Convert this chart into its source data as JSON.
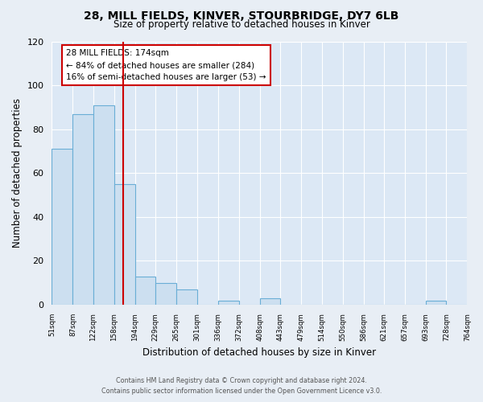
{
  "title": "28, MILL FIELDS, KINVER, STOURBRIDGE, DY7 6LB",
  "subtitle": "Size of property relative to detached houses in Kinver",
  "xlabel": "Distribution of detached houses by size in Kinver",
  "ylabel": "Number of detached properties",
  "bin_edges": [
    51,
    87,
    122,
    158,
    194,
    229,
    265,
    301,
    336,
    372,
    408,
    443,
    479,
    514,
    550,
    586,
    621,
    657,
    693,
    728,
    764
  ],
  "counts": [
    71,
    87,
    91,
    55,
    13,
    10,
    7,
    0,
    2,
    0,
    3,
    0,
    0,
    0,
    0,
    0,
    0,
    0,
    2,
    0
  ],
  "bar_color": "#ccdff0",
  "bar_edge_color": "#6aaed6",
  "vline_x": 174,
  "vline_color": "#cc0000",
  "annotation_text": "28 MILL FIELDS: 174sqm\n← 84% of detached houses are smaller (284)\n16% of semi-detached houses are larger (53) →",
  "annotation_box_color": "white",
  "annotation_box_edge": "#cc0000",
  "ylim": [
    0,
    120
  ],
  "yticks": [
    0,
    20,
    40,
    60,
    80,
    100,
    120
  ],
  "tick_labels": [
    "51sqm",
    "87sqm",
    "122sqm",
    "158sqm",
    "194sqm",
    "229sqm",
    "265sqm",
    "301sqm",
    "336sqm",
    "372sqm",
    "408sqm",
    "443sqm",
    "479sqm",
    "514sqm",
    "550sqm",
    "586sqm",
    "621sqm",
    "657sqm",
    "693sqm",
    "728sqm",
    "764sqm"
  ],
  "footer1": "Contains HM Land Registry data © Crown copyright and database right 2024.",
  "footer2": "Contains public sector information licensed under the Open Government Licence v3.0.",
  "bg_color": "#e8eef5",
  "plot_bg_color": "#dce8f5",
  "grid_color": "#ffffff"
}
